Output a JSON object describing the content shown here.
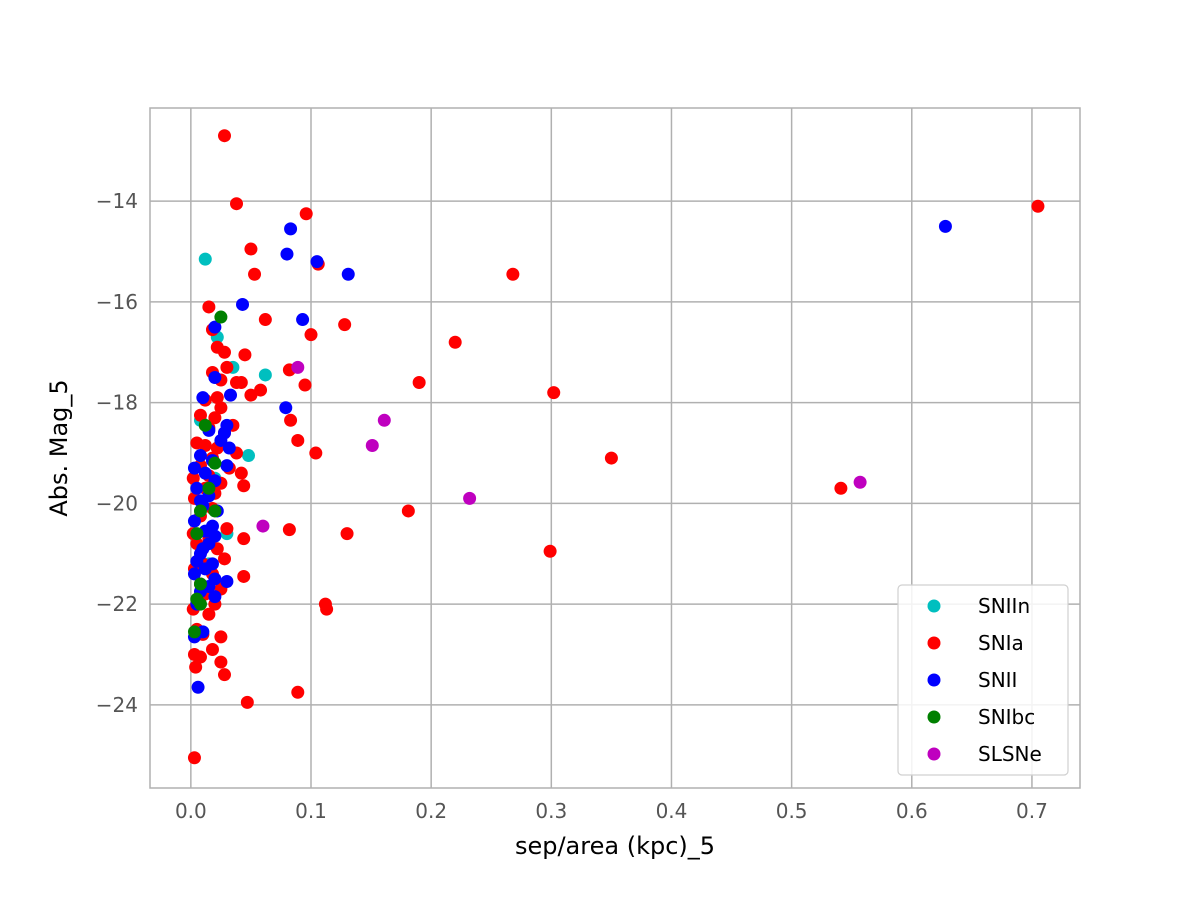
{
  "chart_data": {
    "type": "scatter",
    "xlabel": "sep/area (kpc)_5",
    "ylabel": "Abs. Mag_5",
    "xlim": [
      -0.034,
      0.74
    ],
    "ylim": [
      -25.65,
      -12.15
    ],
    "y_inverted": true,
    "x_ticks": [
      0.0,
      0.1,
      0.2,
      0.3,
      0.4,
      0.5,
      0.6,
      0.7
    ],
    "x_tick_labels": [
      "0.0",
      "0.1",
      "0.2",
      "0.3",
      "0.4",
      "0.5",
      "0.6",
      "0.7"
    ],
    "y_ticks": [
      -14,
      -16,
      -18,
      -20,
      -22,
      -24
    ],
    "y_tick_labels": [
      "−14",
      "−16",
      "−18",
      "−20",
      "−22",
      "−24"
    ],
    "grid": true,
    "legend_position": "bottom-right",
    "series": [
      {
        "name": "SNIIn",
        "color": "#00bfbf",
        "points": [
          [
            0.012,
            -15.15
          ],
          [
            0.022,
            -16.7
          ],
          [
            0.035,
            -17.3
          ],
          [
            0.062,
            -17.45
          ],
          [
            0.048,
            -19.05
          ],
          [
            0.008,
            -18.35
          ],
          [
            0.02,
            -19.5
          ],
          [
            0.03,
            -20.6
          ],
          [
            0.015,
            -21.2
          ]
        ]
      },
      {
        "name": "SNIa",
        "color": "#ff0000",
        "points": [
          [
            0.028,
            -12.7
          ],
          [
            0.038,
            -14.05
          ],
          [
            0.05,
            -14.95
          ],
          [
            0.053,
            -15.45
          ],
          [
            0.015,
            -16.1
          ],
          [
            0.062,
            -16.35
          ],
          [
            0.018,
            -16.55
          ],
          [
            0.022,
            -16.9
          ],
          [
            0.028,
            -17.0
          ],
          [
            0.045,
            -17.05
          ],
          [
            0.03,
            -17.3
          ],
          [
            0.018,
            -17.4
          ],
          [
            0.025,
            -17.55
          ],
          [
            0.038,
            -17.6
          ],
          [
            0.042,
            -17.6
          ],
          [
            0.058,
            -17.75
          ],
          [
            0.05,
            -17.85
          ],
          [
            0.022,
            -17.9
          ],
          [
            0.012,
            -17.95
          ],
          [
            0.025,
            -18.1
          ],
          [
            0.008,
            -18.25
          ],
          [
            0.02,
            -18.3
          ],
          [
            0.035,
            -18.45
          ],
          [
            0.015,
            -18.5
          ],
          [
            0.028,
            -18.6
          ],
          [
            0.005,
            -18.8
          ],
          [
            0.012,
            -18.85
          ],
          [
            0.022,
            -18.9
          ],
          [
            0.038,
            -19.0
          ],
          [
            0.018,
            -19.1
          ],
          [
            0.008,
            -19.25
          ],
          [
            0.032,
            -19.3
          ],
          [
            0.042,
            -19.4
          ],
          [
            0.015,
            -19.45
          ],
          [
            0.002,
            -19.5
          ],
          [
            0.025,
            -19.6
          ],
          [
            0.044,
            -19.65
          ],
          [
            0.012,
            -19.7
          ],
          [
            0.02,
            -19.8
          ],
          [
            0.003,
            -19.9
          ],
          [
            0.018,
            -20.1
          ],
          [
            0.008,
            -20.25
          ],
          [
            0.03,
            -20.5
          ],
          [
            0.002,
            -20.6
          ],
          [
            0.015,
            -20.7
          ],
          [
            0.044,
            -20.7
          ],
          [
            0.005,
            -20.8
          ],
          [
            0.022,
            -20.9
          ],
          [
            0.028,
            -21.1
          ],
          [
            0.01,
            -21.2
          ],
          [
            0.003,
            -21.3
          ],
          [
            0.018,
            -21.4
          ],
          [
            0.044,
            -21.45
          ],
          [
            0.008,
            -21.6
          ],
          [
            0.025,
            -21.7
          ],
          [
            0.012,
            -21.8
          ],
          [
            0.02,
            -22.0
          ],
          [
            0.002,
            -22.1
          ],
          [
            0.015,
            -22.2
          ],
          [
            0.005,
            -22.5
          ],
          [
            0.01,
            -22.6
          ],
          [
            0.025,
            -22.65
          ],
          [
            0.018,
            -22.9
          ],
          [
            0.003,
            -23.0
          ],
          [
            0.008,
            -23.05
          ],
          [
            0.025,
            -23.15
          ],
          [
            0.004,
            -23.25
          ],
          [
            0.028,
            -23.4
          ],
          [
            0.047,
            -23.95
          ],
          [
            0.003,
            -25.05
          ],
          [
            0.096,
            -14.25
          ],
          [
            0.106,
            -15.25
          ],
          [
            0.1,
            -16.65
          ],
          [
            0.128,
            -16.45
          ],
          [
            0.082,
            -17.35
          ],
          [
            0.095,
            -17.65
          ],
          [
            0.083,
            -18.35
          ],
          [
            0.089,
            -18.75
          ],
          [
            0.104,
            -19.0
          ],
          [
            0.082,
            -20.52
          ],
          [
            0.13,
            -20.6
          ],
          [
            0.112,
            -22.0
          ],
          [
            0.113,
            -22.1
          ],
          [
            0.089,
            -23.75
          ],
          [
            0.268,
            -15.45
          ],
          [
            0.22,
            -16.8
          ],
          [
            0.19,
            -17.6
          ],
          [
            0.302,
            -17.8
          ],
          [
            0.35,
            -19.1
          ],
          [
            0.181,
            -20.15
          ],
          [
            0.299,
            -20.95
          ],
          [
            0.541,
            -19.7
          ],
          [
            0.705,
            -14.1
          ]
        ]
      },
      {
        "name": "SNII",
        "color": "#0000ff",
        "points": [
          [
            0.083,
            -14.55
          ],
          [
            0.08,
            -15.05
          ],
          [
            0.105,
            -15.2
          ],
          [
            0.131,
            -15.45
          ],
          [
            0.043,
            -16.05
          ],
          [
            0.093,
            -16.35
          ],
          [
            0.02,
            -16.5
          ],
          [
            0.02,
            -17.5
          ],
          [
            0.01,
            -17.9
          ],
          [
            0.033,
            -17.85
          ],
          [
            0.079,
            -18.1
          ],
          [
            0.03,
            -18.45
          ],
          [
            0.015,
            -18.55
          ],
          [
            0.028,
            -18.6
          ],
          [
            0.025,
            -18.75
          ],
          [
            0.032,
            -18.9
          ],
          [
            0.008,
            -19.05
          ],
          [
            0.018,
            -19.15
          ],
          [
            0.03,
            -19.25
          ],
          [
            0.003,
            -19.3
          ],
          [
            0.012,
            -19.4
          ],
          [
            0.02,
            -19.55
          ],
          [
            0.005,
            -19.7
          ],
          [
            0.015,
            -19.85
          ],
          [
            0.008,
            -19.95
          ],
          [
            0.01,
            -20.05
          ],
          [
            0.022,
            -20.15
          ],
          [
            0.003,
            -20.35
          ],
          [
            0.018,
            -20.45
          ],
          [
            0.012,
            -20.55
          ],
          [
            0.02,
            -20.65
          ],
          [
            0.015,
            -20.8
          ],
          [
            0.01,
            -20.9
          ],
          [
            0.008,
            -21.0
          ],
          [
            0.005,
            -21.15
          ],
          [
            0.018,
            -21.2
          ],
          [
            0.012,
            -21.3
          ],
          [
            0.003,
            -21.4
          ],
          [
            0.02,
            -21.5
          ],
          [
            0.03,
            -21.55
          ],
          [
            0.015,
            -21.65
          ],
          [
            0.008,
            -21.75
          ],
          [
            0.02,
            -21.85
          ],
          [
            0.005,
            -22.0
          ],
          [
            0.01,
            -22.55
          ],
          [
            0.003,
            -22.65
          ],
          [
            0.006,
            -23.65
          ],
          [
            0.628,
            -14.5
          ]
        ]
      },
      {
        "name": "SNIbc",
        "color": "#008000",
        "points": [
          [
            0.025,
            -16.3
          ],
          [
            0.012,
            -18.45
          ],
          [
            0.02,
            -19.2
          ],
          [
            0.015,
            -19.7
          ],
          [
            0.008,
            -20.15
          ],
          [
            0.02,
            -20.15
          ],
          [
            0.005,
            -20.6
          ],
          [
            0.008,
            -21.6
          ],
          [
            0.005,
            -21.9
          ],
          [
            0.008,
            -22.0
          ],
          [
            0.003,
            -22.55
          ]
        ]
      },
      {
        "name": "SLSNe",
        "color": "#bf00bf",
        "points": [
          [
            0.089,
            -17.3
          ],
          [
            0.161,
            -18.35
          ],
          [
            0.151,
            -18.85
          ],
          [
            0.232,
            -19.9
          ],
          [
            0.06,
            -20.45
          ],
          [
            0.557,
            -19.58
          ]
        ]
      }
    ]
  }
}
